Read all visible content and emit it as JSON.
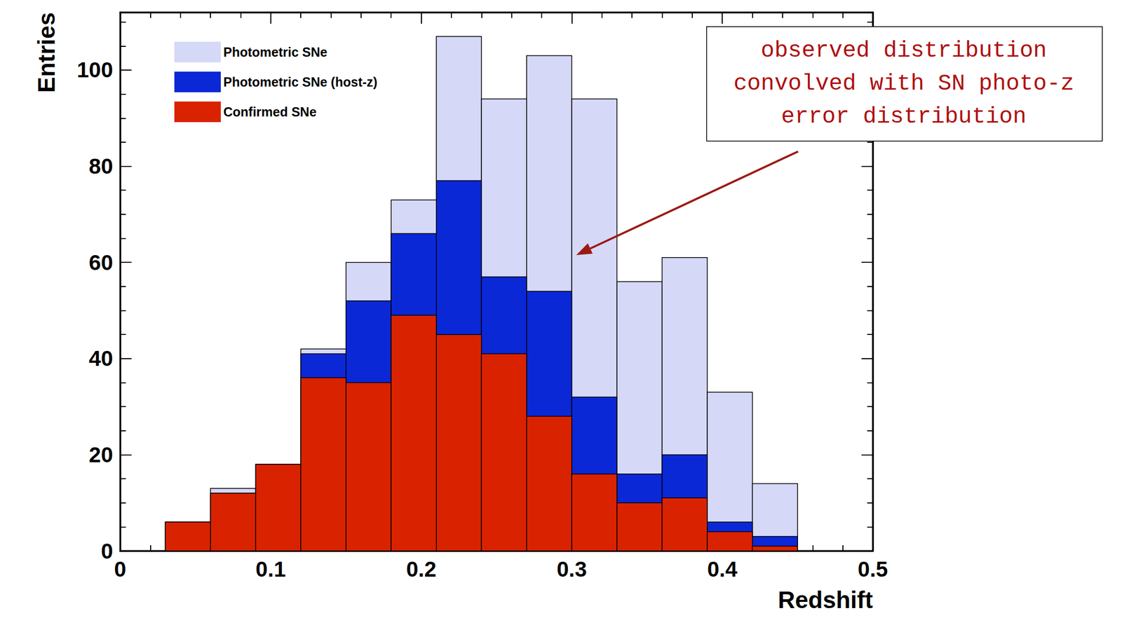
{
  "chart_data": {
    "type": "histogram",
    "bins": [
      0.03,
      0.06,
      0.09,
      0.12,
      0.15,
      0.18,
      0.21,
      0.24,
      0.27,
      0.3,
      0.33,
      0.36,
      0.39,
      0.42,
      0.45
    ],
    "series": [
      {
        "name": "Photometric SNe",
        "color": "#d6d8f7",
        "values": [
          6,
          13,
          18,
          42,
          60,
          73,
          107,
          94,
          103,
          94,
          56,
          61,
          33,
          14
        ]
      },
      {
        "name": "Photometric SNe (host-z)",
        "color": "#0a28d6",
        "values": [
          6,
          12,
          18,
          41,
          52,
          66,
          77,
          57,
          54,
          32,
          16,
          20,
          6,
          3
        ]
      },
      {
        "name": "Confirmed SNe",
        "color": "#d92300",
        "values": [
          6,
          12,
          18,
          36,
          35,
          49,
          45,
          41,
          28,
          16,
          10,
          11,
          4,
          1
        ]
      }
    ],
    "xlabel": "Redshift",
    "ylabel": "Entries",
    "xlim": [
      0,
      0.5
    ],
    "xticks": [
      0,
      0.1,
      0.2,
      0.3,
      0.4,
      0.5
    ],
    "ylim": [
      0,
      112
    ],
    "yticks": [
      0,
      20,
      40,
      60,
      80,
      100
    ],
    "legend": "upper left",
    "grid": false,
    "stacked": false,
    "annotation": "observed distribution\nconvolved with SN photo-z\nerror distribution"
  }
}
